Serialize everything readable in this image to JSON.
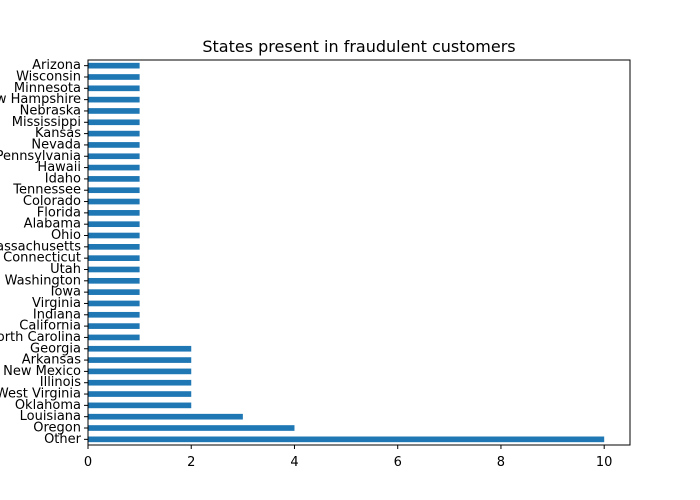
{
  "chart_data": {
    "type": "bar",
    "orientation": "horizontal",
    "title": "States present in fraudulent customers",
    "xlabel": "",
    "ylabel": "",
    "xlim": [
      0,
      10.5
    ],
    "xticks": [
      0,
      2,
      4,
      6,
      8,
      10
    ],
    "bar_color": "#1f77b4",
    "grid": false,
    "categories": [
      "Other",
      "Oregon",
      "Louisiana",
      "Oklahoma",
      "West Virginia",
      "Illinois",
      "New Mexico",
      "Arkansas",
      "Georgia",
      "North Carolina",
      "California",
      "Indiana",
      "Virginia",
      "Iowa",
      "Washington",
      "Utah",
      "Connecticut",
      "Massachusetts",
      "Ohio",
      "Alabama",
      "Florida",
      "Colorado",
      "Tennessee",
      "Idaho",
      "Hawaii",
      "Pennsylvania",
      "Nevada",
      "Kansas",
      "Mississippi",
      "Nebraska",
      "New Hampshire",
      "Minnesota",
      "Wisconsin",
      "Arizona"
    ],
    "values": [
      10,
      4,
      3,
      2,
      2,
      2,
      2,
      2,
      2,
      1,
      1,
      1,
      1,
      1,
      1,
      1,
      1,
      1,
      1,
      1,
      1,
      1,
      1,
      1,
      1,
      1,
      1,
      1,
      1,
      1,
      1,
      1,
      1,
      1
    ]
  }
}
